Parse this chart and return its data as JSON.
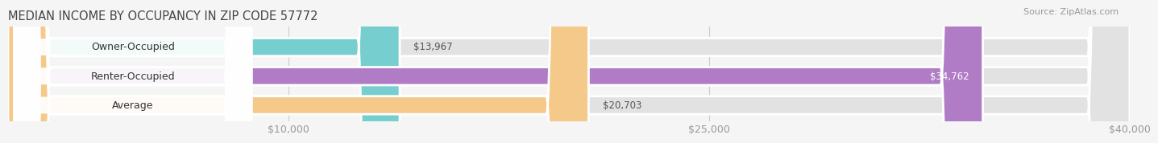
{
  "title": "MEDIAN INCOME BY OCCUPANCY IN ZIP CODE 57772",
  "source": "Source: ZipAtlas.com",
  "categories": [
    "Owner-Occupied",
    "Renter-Occupied",
    "Average"
  ],
  "values": [
    13967,
    34762,
    20703
  ],
  "bar_colors": [
    "#76cece",
    "#b07cc6",
    "#f5c98a"
  ],
  "value_labels": [
    "$13,967",
    "$34,762",
    "$20,703"
  ],
  "value_label_colors": [
    "#555555",
    "#ffffff",
    "#555555"
  ],
  "xlim_data": [
    0,
    40000
  ],
  "xticks": [
    10000,
    25000,
    40000
  ],
  "xticklabels": [
    "$10,000",
    "$25,000",
    "$40,000"
  ],
  "title_fontsize": 10.5,
  "source_fontsize": 8,
  "label_fontsize": 9,
  "value_fontsize": 8.5,
  "bar_height": 0.62,
  "background_color": "#f5f5f5",
  "bar_bg_color": "#e2e2e2",
  "title_color": "#444444",
  "tick_color": "#999999",
  "label_color": "#333333",
  "value_color": "#555555",
  "grid_color": "#cccccc"
}
